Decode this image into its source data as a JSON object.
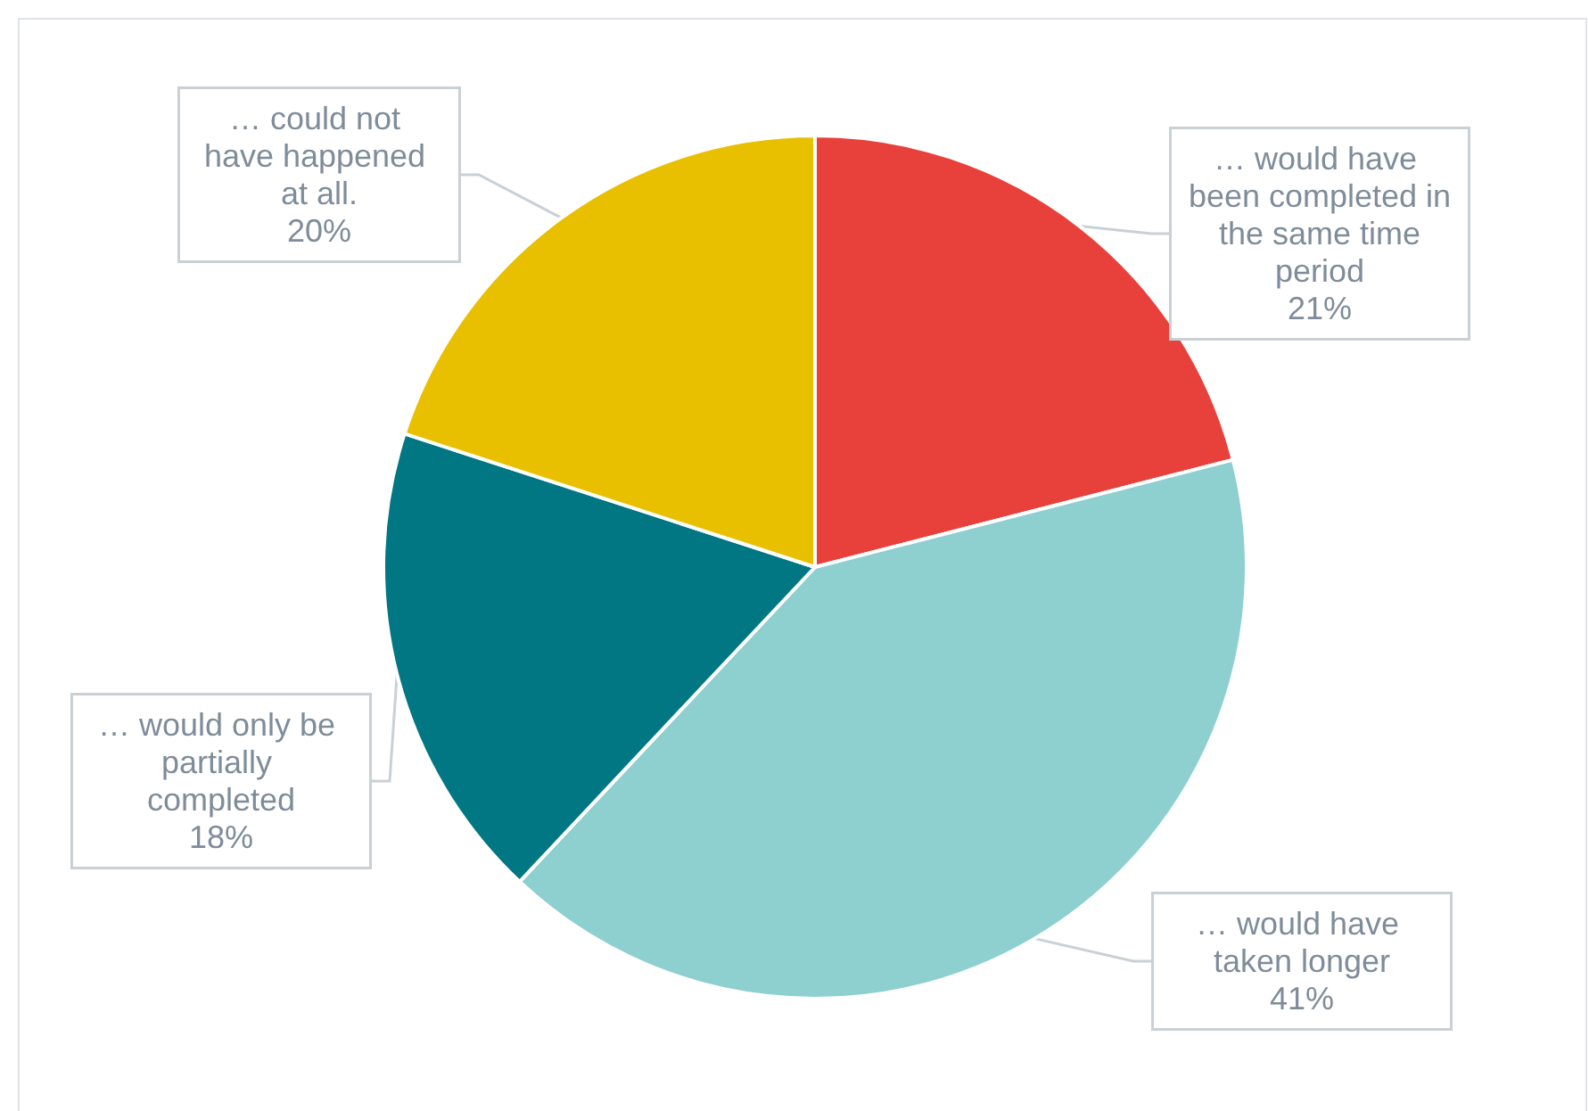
{
  "chart_data": {
    "type": "pie",
    "categories": [
      "… would have been completed in the same time period",
      "… would have taken longer",
      "… would only be partially completed",
      "… could not have happened at all."
    ],
    "values": [
      21,
      41,
      18,
      20
    ],
    "value_labels": [
      "21%",
      "41%",
      "18%",
      "20%"
    ],
    "colors": [
      "#e8403a",
      "#8ecfd0",
      "#007783",
      "#e9c000"
    ],
    "legend": false
  }
}
